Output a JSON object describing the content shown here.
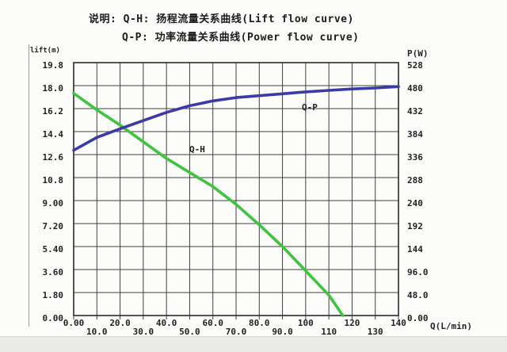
{
  "legend": {
    "line1": "说明: Q-H: 扬程流量关系曲线(Lift flow curve)",
    "line2": "Q-P: 功率流量关系曲线(Power flow curve)"
  },
  "chart_data": {
    "type": "line",
    "title": "",
    "grid": true,
    "legend_position": "top",
    "x_axis": {
      "label": "Q(L/min)",
      "min": 0,
      "max": 140,
      "tick_step": 10,
      "tick_labels": [
        "0.00",
        "10.0",
        "20.0",
        "30.0",
        "40.0",
        "50.0",
        "60.0",
        "70.0",
        "80.0",
        "90.0",
        "100",
        "110",
        "120",
        "130",
        "140"
      ]
    },
    "y_axis_left": {
      "label": "lift(m)",
      "min": 0,
      "max": 19.8,
      "tick_step": 1.8,
      "tick_labels": [
        "19.8",
        "18.0",
        "16.2",
        "14.4",
        "12.6",
        "10.8",
        "9.00",
        "7.20",
        "5.40",
        "3.60",
        "1.80",
        "0.00"
      ]
    },
    "y_axis_right": {
      "label": "P(W)",
      "min": 0,
      "max": 528,
      "tick_step": 48,
      "tick_labels": [
        "528",
        "480",
        "432",
        "384",
        "336",
        "288",
        "240",
        "192",
        "144",
        "96.0",
        "48.0",
        "0.00"
      ]
    },
    "series": [
      {
        "name": "Q-H",
        "axis": "left",
        "color": "#3ec43e",
        "points": [
          [
            0,
            17.4
          ],
          [
            10,
            16.1
          ],
          [
            20,
            14.9
          ],
          [
            30,
            13.6
          ],
          [
            40,
            12.3
          ],
          [
            50,
            11.2
          ],
          [
            60,
            10.1
          ],
          [
            70,
            8.7
          ],
          [
            80,
            7.1
          ],
          [
            90,
            5.4
          ],
          [
            100,
            3.5
          ],
          [
            110,
            1.6
          ],
          [
            116,
            0
          ]
        ]
      },
      {
        "name": "Q-P",
        "axis": "right",
        "color": "#3a3aa8",
        "points": [
          [
            0,
            345
          ],
          [
            10,
            372
          ],
          [
            20,
            390
          ],
          [
            30,
            407
          ],
          [
            40,
            424
          ],
          [
            50,
            438
          ],
          [
            60,
            448
          ],
          [
            70,
            455
          ],
          [
            80,
            459
          ],
          [
            90,
            463
          ],
          [
            100,
            467
          ],
          [
            110,
            470
          ],
          [
            120,
            473
          ],
          [
            130,
            475
          ],
          [
            140,
            478
          ]
        ]
      }
    ]
  },
  "colors": {
    "qh_green": "#3ec43e",
    "qp_blue": "#3a3aa8",
    "grid": "#3f3f3f"
  }
}
